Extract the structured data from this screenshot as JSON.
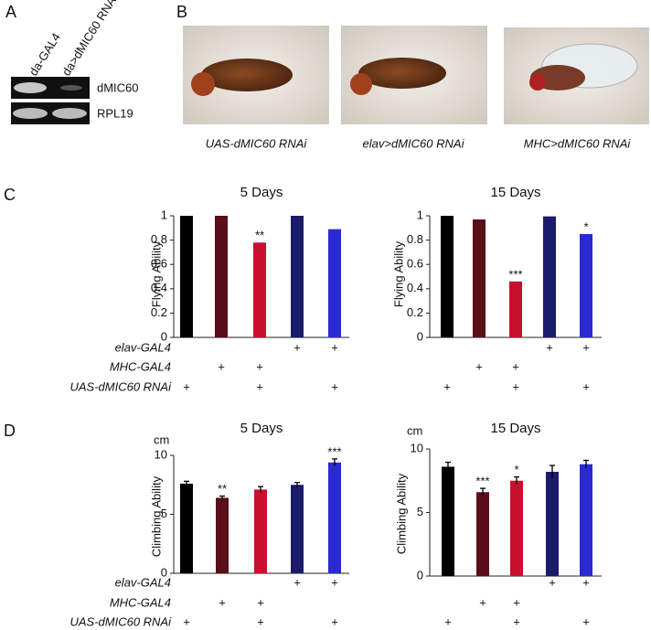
{
  "panels": [
    "A",
    "B",
    "C",
    "D"
  ],
  "gel": {
    "lanes": [
      "da-GAL4",
      "da>dMIC60 RNAi"
    ],
    "bands": [
      "dMIC60",
      "RPL19"
    ]
  },
  "photos": {
    "captions": [
      "UAS-dMIC60 RNAi",
      "elav>dMIC60 RNAi",
      "MHC>dMIC60 RNAi"
    ]
  },
  "genotype": [
    {
      "label": "elav-GAL4",
      "cells": [
        null,
        null,
        null,
        "+",
        "+"
      ]
    },
    {
      "label": "MHC-GAL4",
      "cells": [
        null,
        "+",
        "+",
        null,
        null
      ]
    },
    {
      "label": "UAS-dMIC60 RNAi",
      "cells": [
        "+",
        null,
        "+",
        null,
        "+"
      ]
    }
  ],
  "chart_data": [
    {
      "type": "bar",
      "title": "5 Days",
      "y_label": "Flying Ability",
      "values": [
        1,
        1,
        0.78,
        1,
        0.89
      ],
      "colors": [
        "#000000",
        "#5a0e18",
        "#c8102e",
        "#1b1b6b",
        "#2a2ad2"
      ],
      "annotations": [
        null,
        null,
        "**",
        null,
        null
      ],
      "ylim": [
        0,
        1
      ],
      "yticks": [
        0,
        0.2,
        0.4,
        0.6,
        0.8,
        1
      ]
    },
    {
      "type": "bar",
      "title": "15 Days",
      "y_label": "Flying Ability",
      "values": [
        1,
        0.97,
        0.46,
        0.995,
        0.85
      ],
      "colors": [
        "#000000",
        "#5a0e18",
        "#c8102e",
        "#1b1b6b",
        "#2a2ad2"
      ],
      "annotations": [
        null,
        null,
        "***",
        null,
        "*"
      ],
      "ylim": [
        0,
        1
      ],
      "yticks": [
        0,
        0.2,
        0.4,
        0.6,
        0.8,
        1
      ]
    },
    {
      "type": "bar",
      "title": "5 Days",
      "y_label": "Climbing Ability",
      "y_unit": "cm",
      "values": [
        7.6,
        6.4,
        7.1,
        7.5,
        9.4
      ],
      "errors": [
        0.2,
        0.15,
        0.25,
        0.2,
        0.3
      ],
      "colors": [
        "#000000",
        "#5a0e18",
        "#c8102e",
        "#1b1b6b",
        "#2a2ad2"
      ],
      "annotations": [
        null,
        "**",
        null,
        null,
        "***"
      ],
      "ylim": [
        0,
        10
      ],
      "yticks": [
        0,
        5,
        10
      ]
    },
    {
      "type": "bar",
      "title": "15 Days",
      "y_label": "Climbing Ability",
      "y_unit": "cm",
      "values": [
        8.6,
        6.6,
        7.5,
        8.2,
        8.8
      ],
      "errors": [
        0.35,
        0.3,
        0.3,
        0.5,
        0.3
      ],
      "colors": [
        "#000000",
        "#5a0e18",
        "#c8102e",
        "#1b1b6b",
        "#2a2ad2"
      ],
      "annotations": [
        null,
        "***",
        "*",
        null,
        null
      ],
      "ylim": [
        0,
        10
      ],
      "yticks": [
        0,
        5,
        10
      ]
    }
  ]
}
